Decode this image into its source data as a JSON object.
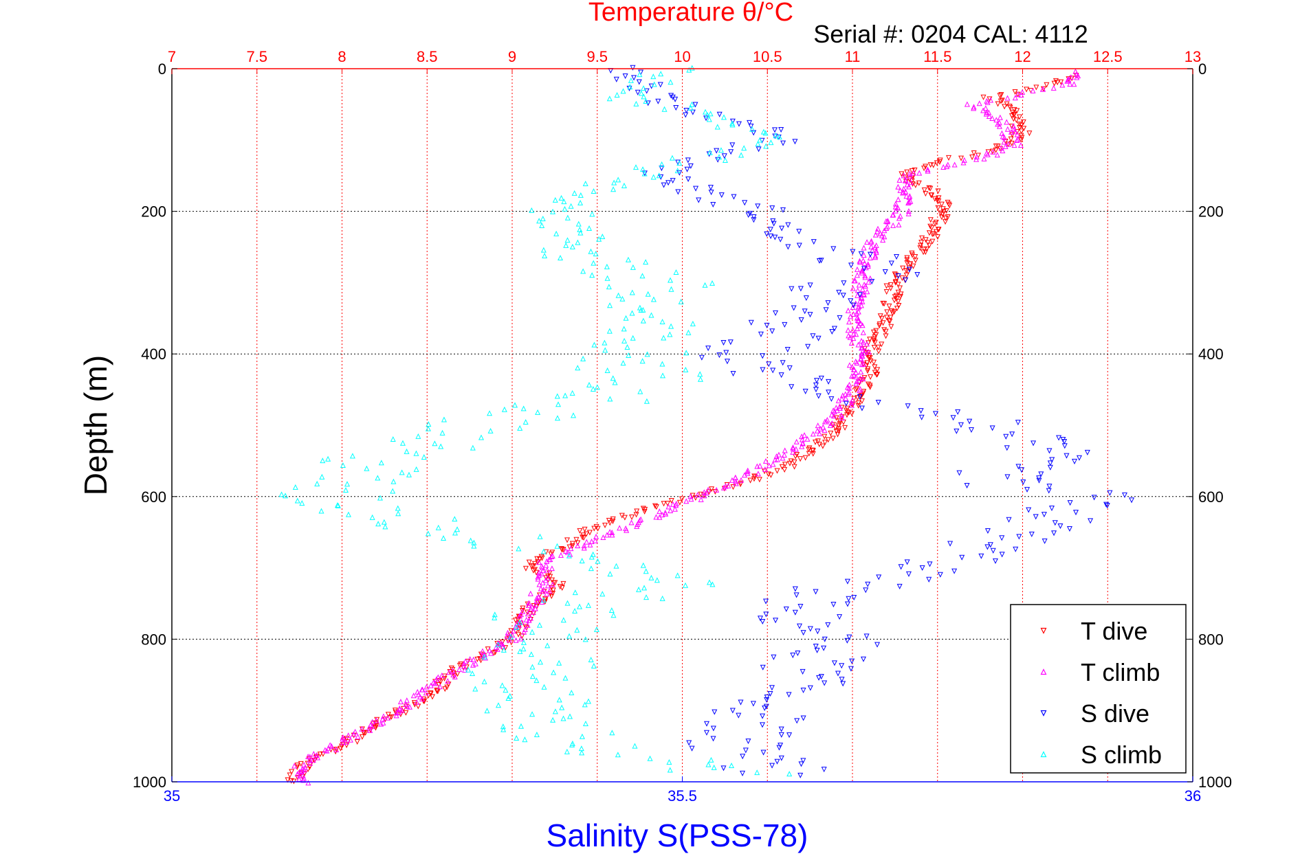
{
  "chart_data": {
    "type": "scatter",
    "title": "Temperature θ/°C",
    "subtitle": "Serial #: 0204   CAL: 4112",
    "ylabel": "Depth (m)",
    "xlabel_bottom": "Salinity S(PSS-78)",
    "top_axis": {
      "label": "Temperature θ/°C",
      "range": [
        7,
        13
      ],
      "ticks": [
        7,
        7.5,
        8,
        8.5,
        9,
        9.5,
        10,
        10.5,
        11,
        11.5,
        12,
        12.5,
        13
      ],
      "color": "#ff0000"
    },
    "bottom_axis": {
      "label": "Salinity S(PSS-78)",
      "range": [
        35,
        36
      ],
      "ticks": [
        35,
        35.5,
        36
      ],
      "color": "#0000ff"
    },
    "y_axis": {
      "range": [
        0,
        1000
      ],
      "reversed": true,
      "ticks": [
        0,
        200,
        400,
        600,
        800,
        1000
      ]
    },
    "grid": true,
    "legend": {
      "position": "bottom-right",
      "entries": [
        "T dive",
        "T climb",
        "S dive",
        "S climb"
      ]
    },
    "series": [
      {
        "name": "T dive",
        "axis": "temperature",
        "color": "#ff0000",
        "marker": "triangle-down",
        "profile": [
          [
            12.3,
            10
          ],
          [
            12.05,
            30
          ],
          [
            11.8,
            40
          ],
          [
            11.95,
            60
          ],
          [
            12.0,
            90
          ],
          [
            11.85,
            115
          ],
          [
            11.5,
            130
          ],
          [
            11.3,
            150
          ],
          [
            11.45,
            170
          ],
          [
            11.55,
            190
          ],
          [
            11.45,
            240
          ],
          [
            11.25,
            300
          ],
          [
            11.2,
            360
          ],
          [
            11.1,
            400
          ],
          [
            11.1,
            430
          ],
          [
            11.0,
            470
          ],
          [
            10.9,
            510
          ],
          [
            10.6,
            560
          ],
          [
            10.2,
            590
          ],
          [
            9.9,
            610
          ],
          [
            9.5,
            640
          ],
          [
            9.3,
            670
          ],
          [
            9.1,
            700
          ],
          [
            9.3,
            720
          ],
          [
            9.1,
            760
          ],
          [
            9.0,
            800
          ],
          [
            8.7,
            840
          ],
          [
            8.5,
            880
          ],
          [
            8.2,
            920
          ],
          [
            8.0,
            950
          ],
          [
            7.8,
            970
          ],
          [
            7.7,
            1000
          ]
        ]
      },
      {
        "name": "T climb",
        "axis": "temperature",
        "color": "#ff00ff",
        "marker": "triangle-up",
        "profile": [
          [
            12.35,
            5
          ],
          [
            12.3,
            20
          ],
          [
            11.7,
            50
          ],
          [
            11.9,
            80
          ],
          [
            11.95,
            110
          ],
          [
            11.6,
            135
          ],
          [
            11.3,
            150
          ],
          [
            11.3,
            200
          ],
          [
            11.1,
            250
          ],
          [
            11.05,
            300
          ],
          [
            11.0,
            350
          ],
          [
            11.05,
            400
          ],
          [
            11.0,
            450
          ],
          [
            10.9,
            490
          ],
          [
            10.6,
            540
          ],
          [
            10.3,
            580
          ],
          [
            9.9,
            620
          ],
          [
            9.5,
            660
          ],
          [
            9.2,
            690
          ],
          [
            9.2,
            720
          ],
          [
            9.1,
            760
          ],
          [
            9.0,
            800
          ],
          [
            8.7,
            840
          ],
          [
            8.45,
            880
          ],
          [
            8.2,
            920
          ],
          [
            7.95,
            950
          ],
          [
            7.75,
            975
          ],
          [
            7.8,
            1000
          ]
        ]
      },
      {
        "name": "S dive",
        "axis": "salinity",
        "color": "#0000ff",
        "marker": "triangle-down",
        "profile": [
          [
            35.45,
            0
          ],
          [
            35.47,
            30
          ],
          [
            35.5,
            60
          ],
          [
            35.58,
            80
          ],
          [
            35.6,
            100
          ],
          [
            35.52,
            125
          ],
          [
            35.48,
            150
          ],
          [
            35.53,
            180
          ],
          [
            35.58,
            200
          ],
          [
            35.6,
            240
          ],
          [
            35.7,
            280
          ],
          [
            35.63,
            320
          ],
          [
            35.6,
            370
          ],
          [
            35.55,
            410
          ],
          [
            35.62,
            440
          ],
          [
            35.7,
            470
          ],
          [
            35.8,
            500
          ],
          [
            35.85,
            540
          ],
          [
            35.8,
            580
          ],
          [
            35.9,
            600
          ],
          [
            35.85,
            640
          ],
          [
            35.75,
            700
          ],
          [
            35.65,
            730
          ],
          [
            35.6,
            760
          ],
          [
            35.65,
            800
          ],
          [
            35.62,
            850
          ],
          [
            35.58,
            900
          ],
          [
            35.55,
            950
          ],
          [
            35.6,
            990
          ]
        ]
      },
      {
        "name": "S climb",
        "axis": "salinity",
        "color": "#00ffff",
        "marker": "triangle-up",
        "profile": [
          [
            35.48,
            0
          ],
          [
            35.45,
            40
          ],
          [
            35.55,
            80
          ],
          [
            35.6,
            100
          ],
          [
            35.45,
            150
          ],
          [
            35.38,
            200
          ],
          [
            35.4,
            250
          ],
          [
            35.47,
            300
          ],
          [
            35.45,
            350
          ],
          [
            35.45,
            400
          ],
          [
            35.47,
            450
          ],
          [
            35.3,
            500
          ],
          [
            35.2,
            550
          ],
          [
            35.15,
            600
          ],
          [
            35.28,
            650
          ],
          [
            35.4,
            680
          ],
          [
            35.5,
            720
          ],
          [
            35.37,
            760
          ],
          [
            35.37,
            800
          ],
          [
            35.35,
            850
          ],
          [
            35.35,
            900
          ],
          [
            35.4,
            950
          ],
          [
            35.55,
            990
          ]
        ]
      }
    ]
  }
}
